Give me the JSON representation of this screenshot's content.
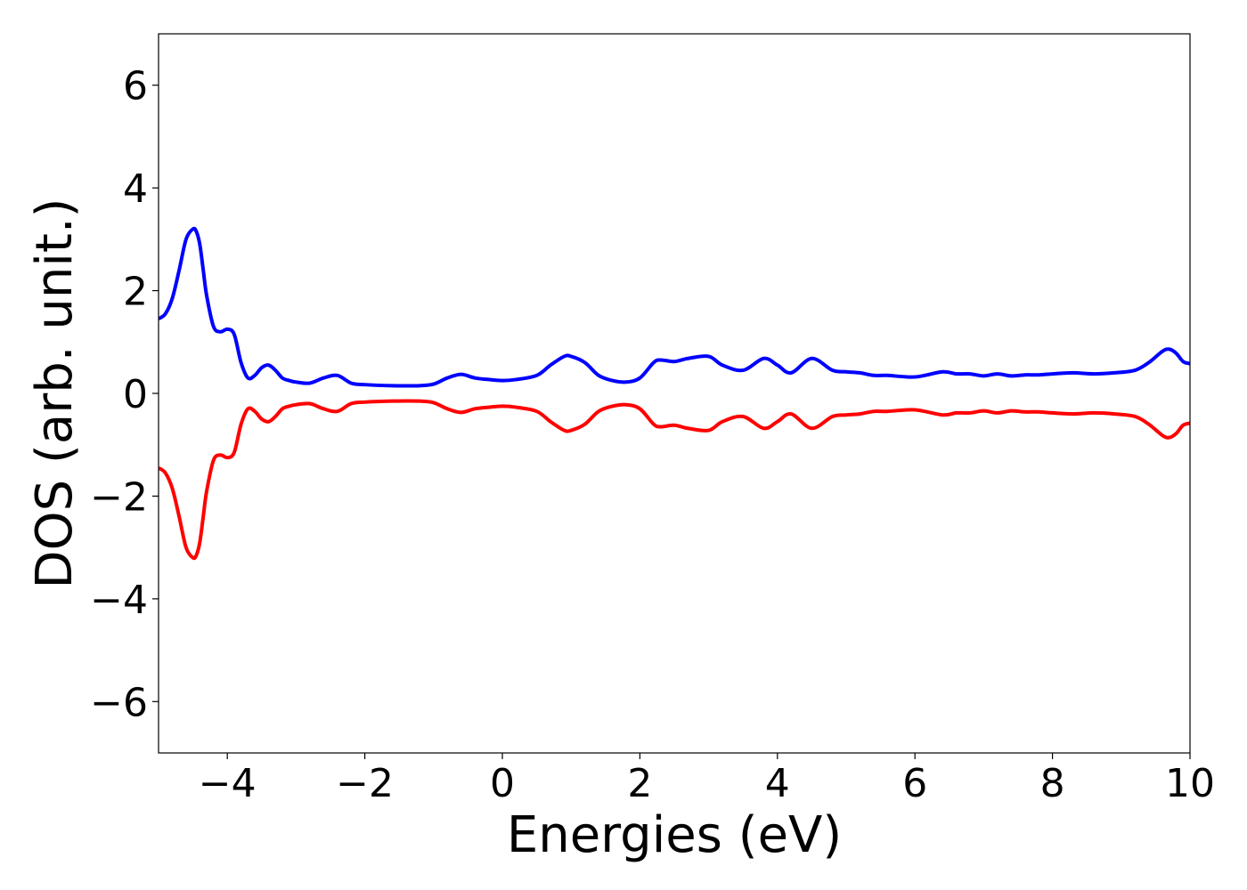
{
  "chart_data": {
    "type": "line",
    "title": "",
    "xlabel": "Energies (eV)",
    "ylabel": "DOS (arb. unit.)",
    "xlim": [
      -5,
      10
    ],
    "ylim": [
      -7,
      7
    ],
    "xticks": [
      -4,
      -2,
      0,
      2,
      4,
      6,
      8,
      10
    ],
    "yticks": [
      -6,
      -4,
      -2,
      0,
      2,
      4,
      6
    ],
    "grid": false,
    "legend": "none",
    "colors": {
      "spin_up": "#0000ff",
      "spin_down": "#ff0000"
    },
    "series": [
      {
        "color": "#0000ff",
        "x": [
          -5.0,
          -4.9,
          -4.8,
          -4.7,
          -4.6,
          -4.5,
          -4.45,
          -4.4,
          -4.35,
          -4.3,
          -4.2,
          -4.1,
          -4.0,
          -3.9,
          -3.8,
          -3.7,
          -3.6,
          -3.5,
          -3.4,
          -3.3,
          -3.2,
          -3.1,
          -3.0,
          -2.8,
          -2.6,
          -2.4,
          -2.2,
          -2.0,
          -1.6,
          -1.2,
          -1.0,
          -0.8,
          -0.6,
          -0.4,
          -0.2,
          0.0,
          0.2,
          0.5,
          0.7,
          0.9,
          1.0,
          1.2,
          1.4,
          1.6,
          1.8,
          2.0,
          2.2,
          2.3,
          2.5,
          2.7,
          3.0,
          3.2,
          3.5,
          3.8,
          4.0,
          4.2,
          4.5,
          4.8,
          5.0,
          5.2,
          5.4,
          5.6,
          6.0,
          6.4,
          6.6,
          6.8,
          7.0,
          7.2,
          7.4,
          7.6,
          7.8,
          8.0,
          8.3,
          8.6,
          8.9,
          9.2,
          9.4,
          9.6,
          9.7,
          9.8,
          9.9,
          10.0
        ],
        "values": [
          1.45,
          1.55,
          1.85,
          2.4,
          3.0,
          3.2,
          3.15,
          2.9,
          2.4,
          1.9,
          1.3,
          1.2,
          1.25,
          1.15,
          0.6,
          0.3,
          0.35,
          0.5,
          0.55,
          0.45,
          0.3,
          0.25,
          0.22,
          0.2,
          0.3,
          0.35,
          0.2,
          0.17,
          0.15,
          0.15,
          0.18,
          0.3,
          0.37,
          0.3,
          0.27,
          0.25,
          0.27,
          0.35,
          0.55,
          0.72,
          0.72,
          0.6,
          0.35,
          0.25,
          0.22,
          0.3,
          0.6,
          0.65,
          0.62,
          0.68,
          0.72,
          0.55,
          0.45,
          0.68,
          0.55,
          0.4,
          0.68,
          0.45,
          0.42,
          0.4,
          0.35,
          0.35,
          0.32,
          0.42,
          0.38,
          0.38,
          0.34,
          0.38,
          0.34,
          0.36,
          0.36,
          0.38,
          0.4,
          0.38,
          0.4,
          0.45,
          0.6,
          0.82,
          0.86,
          0.78,
          0.62,
          0.58
        ]
      },
      {
        "color": "#ff0000",
        "x": [
          -5.0,
          -4.9,
          -4.8,
          -4.7,
          -4.6,
          -4.5,
          -4.45,
          -4.4,
          -4.35,
          -4.3,
          -4.2,
          -4.1,
          -4.0,
          -3.9,
          -3.8,
          -3.7,
          -3.6,
          -3.5,
          -3.4,
          -3.3,
          -3.2,
          -3.1,
          -3.0,
          -2.8,
          -2.6,
          -2.4,
          -2.2,
          -2.0,
          -1.6,
          -1.2,
          -1.0,
          -0.8,
          -0.6,
          -0.4,
          -0.2,
          0.0,
          0.2,
          0.5,
          0.7,
          0.9,
          1.0,
          1.2,
          1.4,
          1.6,
          1.8,
          2.0,
          2.2,
          2.3,
          2.5,
          2.7,
          3.0,
          3.2,
          3.5,
          3.8,
          4.0,
          4.2,
          4.5,
          4.8,
          5.0,
          5.2,
          5.4,
          5.6,
          6.0,
          6.4,
          6.6,
          6.8,
          7.0,
          7.2,
          7.4,
          7.6,
          7.8,
          8.0,
          8.3,
          8.6,
          8.9,
          9.2,
          9.4,
          9.6,
          9.7,
          9.8,
          9.9,
          10.0
        ],
        "values": [
          -1.45,
          -1.55,
          -1.85,
          -2.4,
          -3.0,
          -3.2,
          -3.15,
          -2.9,
          -2.4,
          -1.9,
          -1.3,
          -1.2,
          -1.25,
          -1.15,
          -0.6,
          -0.3,
          -0.35,
          -0.5,
          -0.55,
          -0.45,
          -0.3,
          -0.25,
          -0.22,
          -0.2,
          -0.3,
          -0.35,
          -0.2,
          -0.17,
          -0.15,
          -0.15,
          -0.18,
          -0.3,
          -0.37,
          -0.3,
          -0.27,
          -0.25,
          -0.27,
          -0.35,
          -0.55,
          -0.72,
          -0.72,
          -0.6,
          -0.35,
          -0.25,
          -0.22,
          -0.3,
          -0.6,
          -0.65,
          -0.62,
          -0.68,
          -0.72,
          -0.55,
          -0.45,
          -0.68,
          -0.55,
          -0.4,
          -0.68,
          -0.45,
          -0.42,
          -0.4,
          -0.35,
          -0.35,
          -0.32,
          -0.42,
          -0.38,
          -0.38,
          -0.34,
          -0.38,
          -0.34,
          -0.36,
          -0.36,
          -0.38,
          -0.4,
          -0.38,
          -0.4,
          -0.45,
          -0.6,
          -0.82,
          -0.86,
          -0.78,
          -0.62,
          -0.58
        ]
      }
    ]
  }
}
